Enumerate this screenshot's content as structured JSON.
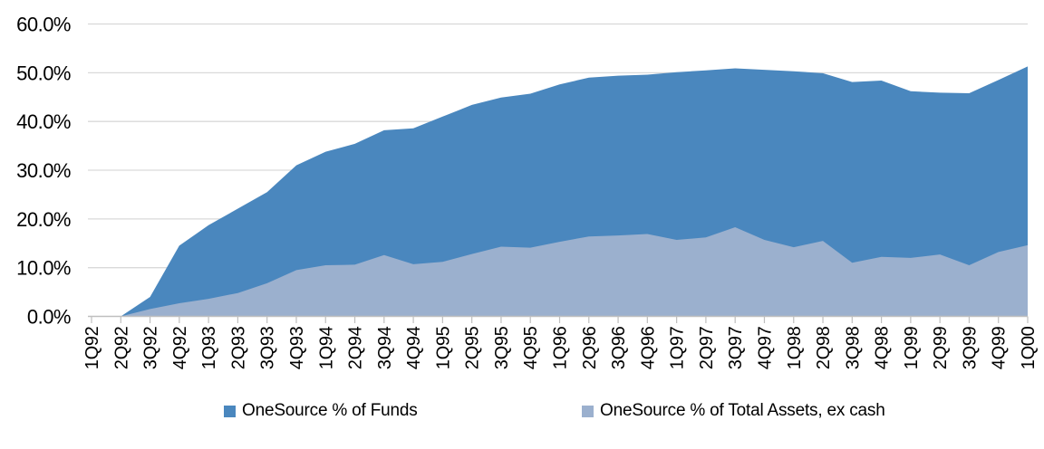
{
  "chart_data": {
    "type": "area",
    "title": "",
    "xlabel": "",
    "ylabel": "",
    "ylim": [
      0,
      60
    ],
    "grid": true,
    "legend_position": "bottom",
    "y_tick_labels": [
      "0.0%",
      "10.0%",
      "20.0%",
      "30.0%",
      "40.0%",
      "50.0%",
      "60.0%"
    ],
    "categories": [
      "1Q92",
      "2Q92",
      "3Q92",
      "4Q92",
      "1Q93",
      "2Q93",
      "3Q93",
      "4Q93",
      "1Q94",
      "2Q94",
      "3Q94",
      "4Q94",
      "1Q95",
      "2Q95",
      "3Q95",
      "4Q95",
      "1Q96",
      "2Q96",
      "3Q96",
      "4Q96",
      "1Q97",
      "2Q97",
      "3Q97",
      "4Q97",
      "1Q98",
      "2Q98",
      "3Q98",
      "4Q98",
      "1Q99",
      "2Q99",
      "3Q99",
      "4Q99",
      "1Q00"
    ],
    "series": [
      {
        "name": "OneSource % of Funds",
        "color": "#4A87BE",
        "values": [
          0,
          0,
          4.0,
          14.5,
          18.7,
          22.1,
          25.5,
          31.0,
          33.8,
          35.4,
          38.2,
          38.6,
          41.0,
          43.4,
          44.9,
          45.7,
          47.6,
          49.0,
          49.4,
          49.6,
          50.1,
          50.5,
          50.9,
          50.6,
          50.3,
          49.9,
          48.1,
          48.4,
          46.2,
          45.9,
          45.8,
          48.5,
          51.3
        ]
      },
      {
        "name": "OneSource % of Total Assets, ex cash",
        "color": "#9BB0CE",
        "values": [
          0,
          0,
          1.5,
          2.7,
          3.6,
          4.8,
          6.8,
          9.5,
          10.5,
          10.6,
          12.6,
          10.7,
          11.2,
          12.8,
          14.3,
          14.1,
          15.3,
          16.4,
          16.6,
          16.9,
          15.7,
          16.2,
          18.3,
          15.7,
          14.2,
          15.5,
          11.0,
          12.2,
          12.0,
          12.7,
          10.5,
          13.2,
          14.6
        ]
      }
    ]
  },
  "legend": {
    "funds_label": "OneSource % of Funds",
    "assets_label": "OneSource % of Total Assets, ex cash"
  },
  "colors": {
    "background": "#FFFFFF",
    "gridline": "#D9D9D9",
    "axis": "#BFBFBF",
    "text": "#000000",
    "funds_fill": "#4A87BE",
    "assets_fill": "#9BB0CE"
  }
}
